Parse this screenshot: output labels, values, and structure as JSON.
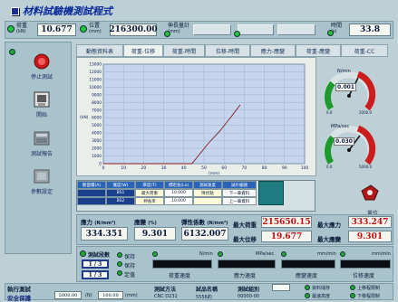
{
  "app": {
    "title": "材料試驗機測試程式"
  },
  "top": {
    "load_label": "荷重",
    "load_unit": "(kN)",
    "load_value": "10.677",
    "pos_label": "位置",
    "pos_unit": "(mm)",
    "pos_value": "216300.00",
    "ext_label": "伸長量計",
    "ext_unit": "(mm)",
    "time_label": "時間",
    "time_unit": "(s)",
    "time_value": "33.8"
  },
  "sidebar": {
    "items": [
      {
        "label": "停止測試"
      },
      {
        "label": "開始"
      },
      {
        "label": "測試報告"
      },
      {
        "label": "參數設定"
      }
    ]
  },
  "tabs": [
    "動態資料表",
    "荷重-位移",
    "荷重-時間",
    "位移-時間",
    "應力-應變",
    "荷重-應變",
    "荷重-CC"
  ],
  "chart_data": {
    "type": "line",
    "title": "",
    "xlabel": "",
    "ylabel": "",
    "x_ticks": [
      "0",
      "10",
      "20",
      "30",
      "40",
      "50",
      "60",
      "70",
      "80",
      "90",
      "100"
    ],
    "x_unit": "(mm)",
    "y_ticks": [
      "0",
      "1000",
      "2000",
      "3000",
      "4000",
      "5000",
      "6000",
      "7000",
      "8000",
      "9000",
      "10000",
      "11000",
      "12000",
      "13000"
    ],
    "y_unit": "(kN)",
    "xlim": [
      0,
      100
    ],
    "ylim": [
      0,
      13000
    ],
    "series": [
      {
        "x": [
          0,
          44,
          52,
          58,
          64,
          68
        ],
        "y": [
          0,
          0,
          2600,
          4300,
          6300,
          7700
        ]
      }
    ],
    "grid": true
  },
  "gauges": {
    "g1": {
      "label": "N/min",
      "value": "0.001",
      "min": "0.0",
      "max": "2000.0"
    },
    "g2": {
      "label": "MPa/sec",
      "value": "0.030",
      "min": "0.0",
      "max": "5000.0"
    }
  },
  "spec_table": {
    "row1": [
      "斷面積(A)",
      "寬度(W)",
      "厚度(T)",
      "標距長(Lo)",
      "測試速度",
      "試片編號"
    ],
    "row2": [
      "",
      "BS1",
      "最大荷重",
      "10.000",
      "降伏點",
      "下一筆資料"
    ],
    "row3": [
      "",
      "BS2",
      "伸長率",
      "10.000",
      "",
      "上一筆資料"
    ]
  },
  "stats": {
    "stress_label": "應力",
    "stress_unit": "(N/mm²)",
    "stress_value": "334.351",
    "strain_label": "應變",
    "strain_unit": "(%)",
    "strain_value": "9.301",
    "modulus_label": "彈性係數",
    "modulus_unit": "(N/mm²)",
    "modulus_value": "6132.007",
    "maxpos_label": "最大荷重",
    "maxpos_value": "215650.15",
    "maxload_label": "最大位移",
    "maxload_value": "19.677",
    "maxstress_label": "最大應力",
    "maxstress_value": "333.247",
    "maxstrain_label": "最大應變",
    "maxstrain_value": "9.301",
    "unit_label": "單位"
  },
  "speeds": {
    "label": "測試段數",
    "seg1": "1 / 3",
    "seg2": "1 / 3",
    "led_labels": [
      "保持",
      "保持",
      "定值"
    ],
    "ch": [
      {
        "unit": "N/min",
        "caption": "荷重速度"
      },
      {
        "unit": "MPa/sec",
        "caption": "應力速度"
      },
      {
        "unit": "mm/min",
        "caption": "應變速度"
      },
      {
        "unit": "mm/min",
        "caption": "位移速度"
      }
    ]
  },
  "bottom": {
    "exec_label": "執行測試",
    "safety_label": "安全保護",
    "f1_value": "5000.00",
    "f1_unit": "(N)",
    "f2_value": "100.00",
    "f2_unit": "(mm)",
    "method_label": "測試方法",
    "method_value": "CNC D231",
    "spec_label": "試品名稱",
    "spec_value": "5556的",
    "count_label": "測試組別",
    "count_value": "00000-00",
    "r1": "資料儲存",
    "r2": "最速高度",
    "r3": "上移程限制",
    "r4": "下移程限制"
  }
}
